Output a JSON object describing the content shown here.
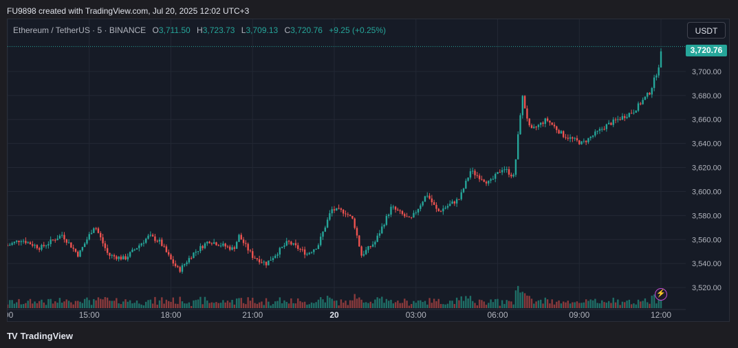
{
  "header": {
    "caption": "FU9898 created with TradingView.com, Jul 20, 2025 12:02 UTC+3"
  },
  "legend": {
    "symbol": "Ethereum / TetherUS · 5 · BINANCE",
    "o_label": "O",
    "o_value": "3,711.50",
    "h_label": "H",
    "h_value": "3,723.73",
    "l_label": "L",
    "l_value": "3,709.13",
    "c_label": "C",
    "c_value": "3,720.76",
    "change": "+9.25 (+0.25%)"
  },
  "currency_button": "USDT",
  "last_price_tag": "3,720.76",
  "brand": {
    "logo": "TV",
    "name": "TradingView"
  },
  "colors": {
    "up": "#26a69a",
    "down": "#ef5350",
    "volume_up": "#1f6f67",
    "volume_down": "#8a3a3c",
    "background": "#161b26",
    "grid": "#232834"
  },
  "icons": {
    "alert_bolt": "lightning-icon"
  },
  "chart_data": {
    "type": "candlestick",
    "title": "Ethereum / TetherUS · 5 · BINANCE",
    "y_axis": {
      "ticks": [
        3520,
        3540,
        3560,
        3580,
        3600,
        3620,
        3640,
        3660,
        3680,
        3700
      ],
      "tick_labels": [
        "3,520.00",
        "3,540.00",
        "3,560.00",
        "3,580.00",
        "3,600.00",
        "3,620.00",
        "3,640.00",
        "3,660.00",
        "3,680.00",
        "3,700.00"
      ],
      "range": [
        3500,
        3732
      ],
      "side": "right"
    },
    "x_axis": {
      "tick_labels": [
        ":00",
        "15:00",
        "18:00",
        "21:00",
        "20",
        "03:00",
        "06:00",
        "09:00",
        "12:00"
      ],
      "tick_hours": [
        12,
        15,
        18,
        21,
        24,
        27,
        30,
        33,
        36
      ],
      "range_hours": [
        12,
        36.05
      ]
    },
    "last_price": 3720.76,
    "price_path": [
      [
        12.0,
        3555
      ],
      [
        12.5,
        3560
      ],
      [
        13.2,
        3553
      ],
      [
        14.0,
        3564
      ],
      [
        14.6,
        3547
      ],
      [
        15.2,
        3572
      ],
      [
        15.7,
        3547
      ],
      [
        16.3,
        3544
      ],
      [
        17.2,
        3563
      ],
      [
        17.6,
        3558
      ],
      [
        18.0,
        3543
      ],
      [
        18.3,
        3534
      ],
      [
        18.8,
        3548
      ],
      [
        19.4,
        3559
      ],
      [
        20.3,
        3552
      ],
      [
        20.5,
        3563
      ],
      [
        21.0,
        3546
      ],
      [
        21.5,
        3540
      ],
      [
        22.3,
        3558
      ],
      [
        23.0,
        3548
      ],
      [
        23.4,
        3555
      ],
      [
        23.9,
        3585
      ],
      [
        24.4,
        3583
      ],
      [
        24.7,
        3576
      ],
      [
        25.0,
        3547
      ],
      [
        25.5,
        3558
      ],
      [
        26.1,
        3587
      ],
      [
        26.8,
        3576
      ],
      [
        27.4,
        3598
      ],
      [
        27.8,
        3583
      ],
      [
        28.6,
        3594
      ],
      [
        29.0,
        3617
      ],
      [
        29.7,
        3607
      ],
      [
        30.2,
        3620
      ],
      [
        30.6,
        3612
      ],
      [
        30.9,
        3680
      ],
      [
        31.2,
        3650
      ],
      [
        31.8,
        3660
      ],
      [
        32.4,
        3647
      ],
      [
        33.1,
        3640
      ],
      [
        34.0,
        3655
      ],
      [
        35.0,
        3667
      ],
      [
        35.6,
        3683
      ],
      [
        35.9,
        3703
      ],
      [
        36.05,
        3720.76
      ]
    ]
  }
}
